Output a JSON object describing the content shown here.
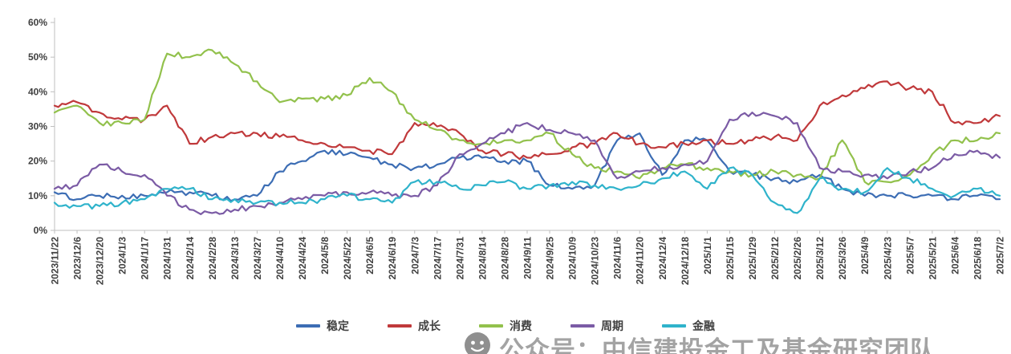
{
  "chart_data": {
    "type": "line",
    "title": "",
    "xlabel": "",
    "ylabel": "",
    "grid": false,
    "legend_position": "bottom",
    "ylim": [
      0,
      60
    ],
    "y_ticks": [
      "0%",
      "10%",
      "20%",
      "30%",
      "40%",
      "50%",
      "60%"
    ],
    "x_categories": [
      "2023/11/22",
      "2023/12/6",
      "2023/12/20",
      "2024/1/3",
      "2024/1/17",
      "2024/1/31",
      "2024/2/14",
      "2024/2/28",
      "2024/3/13",
      "2024/3/27",
      "2024/4/10",
      "2024/4/24",
      "2024/5/8",
      "2024/5/22",
      "2024/6/5",
      "2024/6/19",
      "2024/7/3",
      "2024/7/17",
      "2024/7/31",
      "2024/8/14",
      "2024/8/28",
      "2024/9/11",
      "2024/9/25",
      "2024/10/9",
      "2024/10/23",
      "2024/11/6",
      "2024/11/20",
      "2024/12/4",
      "2024/12/18",
      "2025/1/1",
      "2025/1/15",
      "2025/1/29",
      "2025/2/12",
      "2025/2/26",
      "2025/3/12",
      "2025/3/26",
      "2025/4/9",
      "2025/4/23",
      "2025/5/7",
      "2025/5/21",
      "2025/6/4",
      "2025/6/18",
      "2025/7/2"
    ],
    "series": [
      {
        "name": "稳定",
        "color": "#3C6DB4",
        "values": [
          11,
          9,
          10,
          10,
          10,
          11,
          11,
          10,
          9,
          10,
          17,
          20,
          23,
          22,
          21,
          19,
          18,
          19,
          21,
          21,
          20,
          20,
          13,
          12,
          13,
          26,
          28,
          16,
          26,
          26,
          17,
          16,
          15,
          14,
          16,
          12,
          10,
          10,
          10,
          10,
          9,
          10,
          9
        ]
      },
      {
        "name": "成长",
        "color": "#C0393B",
        "values": [
          36,
          37,
          34,
          32,
          32,
          36,
          25,
          27,
          28,
          28,
          27,
          26,
          25,
          24,
          23,
          22,
          31,
          30,
          28,
          23,
          22,
          21,
          22,
          24,
          25,
          28,
          25,
          24,
          25,
          26,
          25,
          26,
          27,
          26,
          36,
          39,
          41,
          43,
          41,
          40,
          31,
          31,
          33
        ]
      },
      {
        "name": "消费",
        "color": "#92C14C",
        "values": [
          34,
          36,
          31,
          31,
          32,
          51,
          50,
          52,
          48,
          43,
          37,
          38,
          38,
          39,
          44,
          40,
          32,
          29,
          26,
          25,
          26,
          26,
          28,
          22,
          18,
          17,
          15,
          18,
          19,
          18,
          17,
          16,
          17,
          16,
          15,
          26,
          14,
          14,
          16,
          22,
          26,
          26,
          28
        ]
      },
      {
        "name": "周期",
        "color": "#7B5BA5",
        "values": [
          12,
          13,
          19,
          17,
          16,
          10,
          6,
          5,
          6,
          7,
          8,
          9,
          10,
          11,
          11,
          10,
          10,
          13,
          22,
          25,
          28,
          31,
          29,
          28,
          26,
          15,
          17,
          18,
          19,
          20,
          32,
          34,
          33,
          31,
          18,
          17,
          16,
          15,
          17,
          18,
          22,
          23,
          21
        ]
      },
      {
        "name": "金融",
        "color": "#2FB3CB",
        "values": [
          8,
          7,
          7,
          8,
          9,
          12,
          12,
          9,
          9,
          8,
          8,
          8,
          9,
          10,
          9,
          8,
          14,
          14,
          12,
          13,
          14,
          12,
          13,
          14,
          13,
          12,
          13,
          15,
          17,
          12,
          18,
          16,
          8,
          5,
          15,
          12,
          11,
          18,
          15,
          12,
          10,
          12,
          10
        ]
      }
    ]
  },
  "watermark": {
    "icon": "wechat-official-account-icon",
    "text": "公众号：中信建投金工及基金研究团队"
  }
}
